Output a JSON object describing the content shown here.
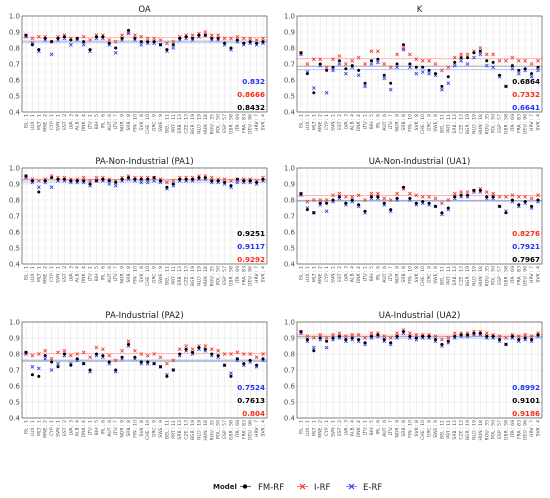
{
  "colors": {
    "FM-RF": "#000000",
    "I-RF": "#ff2a1a",
    "E-RF": "#2233ff",
    "hline_FM": "#9a9a9a",
    "hline_I": "#ffaaaa",
    "hline_E": "#9fb2ff"
  },
  "legend": {
    "title": "Model",
    "entries": [
      {
        "name": "FM-RF",
        "marker": "dot",
        "color": "#000000"
      },
      {
        "name": "I-RF",
        "marker": "cross",
        "color": "#ff2a1a"
      },
      {
        "name": "E-RF",
        "marker": "cross",
        "color": "#2233ff"
      }
    ]
  },
  "chart_data": [
    {
      "type": "scatter",
      "title": "OA",
      "ylim": [
        0.4,
        1.0
      ],
      "yticks": [
        "0.4",
        "0.5",
        "0.6",
        "0.7",
        "0.8",
        "0.9",
        "1.0"
      ],
      "stats": [
        {
          "text": "0.832",
          "color": "#2233ff"
        },
        {
          "text": "0.8666",
          "color": "#ff2a1a"
        },
        {
          "text": "0.8432",
          "color": "#000000"
        }
      ],
      "series": [
        {
          "name": "FM-RF",
          "values": [
            0.88,
            0.82,
            0.79,
            0.86,
            0.84,
            0.86,
            0.87,
            0.85,
            0.86,
            0.84,
            0.79,
            0.87,
            0.87,
            0.83,
            0.8,
            0.86,
            0.91,
            0.86,
            0.84,
            0.84,
            0.84,
            0.82,
            0.79,
            0.82,
            0.86,
            0.87,
            0.86,
            0.88,
            0.88,
            0.86,
            0.86,
            0.83,
            0.8,
            0.85,
            0.83,
            0.84,
            0.83,
            0.84
          ]
        },
        {
          "name": "I-RF",
          "values": [
            0.88,
            0.86,
            0.87,
            0.87,
            0.84,
            0.87,
            0.88,
            0.86,
            0.86,
            0.87,
            0.85,
            0.88,
            0.88,
            0.85,
            0.84,
            0.88,
            0.9,
            0.88,
            0.87,
            0.86,
            0.86,
            0.85,
            0.83,
            0.84,
            0.87,
            0.88,
            0.88,
            0.89,
            0.9,
            0.88,
            0.88,
            0.86,
            0.86,
            0.87,
            0.86,
            0.86,
            0.85,
            0.86
          ]
        },
        {
          "name": "E-RF",
          "values": [
            0.87,
            0.83,
            0.78,
            0.85,
            0.76,
            0.85,
            0.86,
            0.82,
            0.85,
            0.82,
            0.78,
            0.86,
            0.86,
            0.82,
            0.77,
            0.85,
            0.89,
            0.85,
            0.82,
            0.83,
            0.83,
            0.82,
            0.78,
            0.8,
            0.85,
            0.86,
            0.85,
            0.87,
            0.88,
            0.85,
            0.85,
            0.82,
            0.79,
            0.84,
            0.82,
            0.83,
            0.82,
            0.83
          ]
        }
      ],
      "hlines": [
        0.8432,
        0.8666,
        0.832
      ]
    },
    {
      "type": "scatter",
      "title": "K",
      "ylim": [
        0.4,
        1.0
      ],
      "yticks": [
        "0.4",
        "0.5",
        "0.6",
        "0.7",
        "0.8",
        "0.9",
        "1.0"
      ],
      "stats": [
        {
          "text": "0.6864",
          "color": "#000000"
        },
        {
          "text": "0.7332",
          "color": "#ff2a1a"
        },
        {
          "text": "0.6641",
          "color": "#2233ff"
        }
      ],
      "series": [
        {
          "name": "FM-RF",
          "values": [
            0.77,
            0.64,
            0.52,
            0.7,
            0.66,
            0.68,
            0.72,
            0.67,
            0.69,
            0.66,
            0.58,
            0.72,
            0.73,
            0.63,
            0.58,
            0.7,
            0.82,
            0.7,
            0.68,
            0.68,
            0.66,
            0.64,
            0.56,
            0.62,
            0.71,
            0.74,
            0.74,
            0.77,
            0.78,
            0.72,
            0.71,
            0.63,
            0.56,
            0.69,
            0.66,
            0.67,
            0.64,
            0.68
          ]
        },
        {
          "name": "I-RF",
          "values": [
            0.77,
            0.7,
            0.73,
            0.73,
            0.68,
            0.73,
            0.75,
            0.7,
            0.72,
            0.74,
            0.7,
            0.78,
            0.78,
            0.7,
            0.68,
            0.76,
            0.8,
            0.76,
            0.73,
            0.72,
            0.72,
            0.7,
            0.66,
            0.68,
            0.74,
            0.76,
            0.76,
            0.78,
            0.8,
            0.76,
            0.76,
            0.72,
            0.72,
            0.74,
            0.72,
            0.72,
            0.7,
            0.72
          ]
        },
        {
          "name": "E-RF",
          "values": [
            0.76,
            0.65,
            0.55,
            0.69,
            0.52,
            0.66,
            0.7,
            0.64,
            0.68,
            0.63,
            0.56,
            0.7,
            0.71,
            0.61,
            0.54,
            0.68,
            0.79,
            0.68,
            0.64,
            0.65,
            0.64,
            0.63,
            0.54,
            0.58,
            0.69,
            0.72,
            0.7,
            0.74,
            0.76,
            0.69,
            0.68,
            0.62,
            0.56,
            0.67,
            0.64,
            0.66,
            0.62,
            0.66
          ]
        }
      ],
      "hlines": [
        0.6864,
        0.7332,
        0.6641
      ]
    },
    {
      "type": "scatter",
      "title": "PA-Non-Industrial (PA1)",
      "ylim": [
        0.4,
        1.0
      ],
      "yticks": [
        "0.4",
        "0.5",
        "0.6",
        "0.7",
        "0.8",
        "0.9",
        "1.0"
      ],
      "stats": [
        {
          "text": "0.9251",
          "color": "#000000"
        },
        {
          "text": "0.9117",
          "color": "#2233ff"
        },
        {
          "text": "0.9292",
          "color": "#ff2a1a"
        }
      ],
      "series": [
        {
          "name": "FM-RF",
          "values": [
            0.95,
            0.92,
            0.85,
            0.92,
            0.94,
            0.93,
            0.93,
            0.92,
            0.92,
            0.92,
            0.9,
            0.92,
            0.93,
            0.92,
            0.91,
            0.93,
            0.94,
            0.93,
            0.93,
            0.93,
            0.94,
            0.92,
            0.88,
            0.9,
            0.93,
            0.93,
            0.93,
            0.94,
            0.94,
            0.92,
            0.92,
            0.91,
            0.89,
            0.93,
            0.92,
            0.92,
            0.91,
            0.93
          ]
        },
        {
          "name": "I-RF",
          "values": [
            0.95,
            0.93,
            0.92,
            0.93,
            0.95,
            0.94,
            0.94,
            0.93,
            0.93,
            0.94,
            0.92,
            0.94,
            0.94,
            0.93,
            0.92,
            0.94,
            0.95,
            0.94,
            0.94,
            0.94,
            0.94,
            0.93,
            0.91,
            0.92,
            0.94,
            0.94,
            0.94,
            0.95,
            0.95,
            0.94,
            0.93,
            0.93,
            0.92,
            0.93,
            0.93,
            0.93,
            0.92,
            0.94
          ]
        },
        {
          "name": "E-RF",
          "values": [
            0.94,
            0.91,
            0.88,
            0.91,
            0.88,
            0.92,
            0.92,
            0.91,
            0.91,
            0.91,
            0.89,
            0.92,
            0.92,
            0.9,
            0.89,
            0.92,
            0.93,
            0.92,
            0.91,
            0.91,
            0.92,
            0.91,
            0.87,
            0.89,
            0.92,
            0.92,
            0.92,
            0.93,
            0.93,
            0.91,
            0.91,
            0.9,
            0.88,
            0.91,
            0.91,
            0.91,
            0.9,
            0.92
          ]
        }
      ],
      "hlines": [
        0.9251,
        0.9292,
        0.9117
      ]
    },
    {
      "type": "scatter",
      "title": "UA-Non-Industrial (UA1)",
      "ylim": [
        0.4,
        1.0
      ],
      "yticks": [
        "0.4",
        "0.5",
        "0.6",
        "0.7",
        "0.8",
        "0.9",
        "1.0"
      ],
      "stats": [
        {
          "text": "0.8276",
          "color": "#ff2a1a"
        },
        {
          "text": "0.7921",
          "color": "#2233ff"
        },
        {
          "text": "0.7967",
          "color": "#000000"
        }
      ],
      "series": [
        {
          "name": "FM-RF",
          "values": [
            0.84,
            0.74,
            0.72,
            0.78,
            0.78,
            0.8,
            0.82,
            0.78,
            0.8,
            0.77,
            0.73,
            0.82,
            0.82,
            0.78,
            0.74,
            0.81,
            0.88,
            0.81,
            0.78,
            0.79,
            0.78,
            0.76,
            0.72,
            0.75,
            0.82,
            0.83,
            0.83,
            0.86,
            0.86,
            0.82,
            0.82,
            0.76,
            0.72,
            0.8,
            0.77,
            0.79,
            0.76,
            0.8
          ]
        },
        {
          "name": "I-RF",
          "values": [
            0.84,
            0.79,
            0.8,
            0.8,
            0.8,
            0.83,
            0.84,
            0.82,
            0.82,
            0.83,
            0.8,
            0.84,
            0.84,
            0.81,
            0.8,
            0.84,
            0.87,
            0.84,
            0.83,
            0.82,
            0.82,
            0.81,
            0.78,
            0.8,
            0.84,
            0.85,
            0.85,
            0.86,
            0.87,
            0.85,
            0.84,
            0.82,
            0.82,
            0.83,
            0.82,
            0.82,
            0.81,
            0.83
          ]
        },
        {
          "name": "E-RF",
          "values": [
            0.83,
            0.75,
            0.72,
            0.77,
            0.73,
            0.79,
            0.81,
            0.77,
            0.79,
            0.76,
            0.72,
            0.81,
            0.81,
            0.77,
            0.73,
            0.8,
            0.87,
            0.8,
            0.77,
            0.78,
            0.77,
            0.76,
            0.71,
            0.74,
            0.81,
            0.82,
            0.82,
            0.85,
            0.85,
            0.81,
            0.81,
            0.76,
            0.73,
            0.79,
            0.76,
            0.78,
            0.75,
            0.79
          ]
        }
      ],
      "hlines": [
        0.7967,
        0.8276,
        0.7921
      ]
    },
    {
      "type": "scatter",
      "title": "PA-Industrial (PA2)",
      "ylim": [
        0.4,
        1.0
      ],
      "yticks": [
        "0.4",
        "0.5",
        "0.6",
        "0.7",
        "0.8",
        "0.9",
        "1.0"
      ],
      "stats": [
        {
          "text": "0.7524",
          "color": "#2233ff"
        },
        {
          "text": "0.7613",
          "color": "#000000"
        },
        {
          "text": "0.804",
          "color": "#ff2a1a"
        }
      ],
      "series": [
        {
          "name": "FM-RF",
          "values": [
            0.81,
            0.67,
            0.66,
            0.79,
            0.75,
            0.72,
            0.8,
            0.73,
            0.77,
            0.74,
            0.7,
            0.8,
            0.79,
            0.75,
            0.7,
            0.78,
            0.86,
            0.78,
            0.75,
            0.75,
            0.74,
            0.72,
            0.66,
            0.7,
            0.8,
            0.83,
            0.81,
            0.84,
            0.83,
            0.8,
            0.79,
            0.73,
            0.66,
            0.77,
            0.74,
            0.76,
            0.73,
            0.77
          ]
        },
        {
          "name": "I-RF",
          "values": [
            0.81,
            0.79,
            0.8,
            0.82,
            0.77,
            0.81,
            0.82,
            0.79,
            0.8,
            0.81,
            0.78,
            0.84,
            0.83,
            0.79,
            0.76,
            0.82,
            0.88,
            0.82,
            0.8,
            0.79,
            0.8,
            0.78,
            0.74,
            0.76,
            0.83,
            0.85,
            0.83,
            0.85,
            0.85,
            0.83,
            0.82,
            0.8,
            0.8,
            0.81,
            0.8,
            0.8,
            0.78,
            0.8
          ]
        },
        {
          "name": "E-RF",
          "values": [
            0.8,
            0.72,
            0.71,
            0.77,
            0.7,
            0.74,
            0.79,
            0.74,
            0.76,
            0.74,
            0.69,
            0.79,
            0.78,
            0.74,
            0.69,
            0.77,
            0.85,
            0.77,
            0.74,
            0.74,
            0.74,
            0.72,
            0.67,
            0.7,
            0.79,
            0.82,
            0.8,
            0.83,
            0.82,
            0.79,
            0.78,
            0.73,
            0.68,
            0.76,
            0.73,
            0.75,
            0.72,
            0.76
          ]
        }
      ],
      "hlines": [
        0.7613,
        0.804,
        0.7524
      ]
    },
    {
      "type": "scatter",
      "title": "UA-Industrial (UA2)",
      "ylim": [
        0.4,
        1.0
      ],
      "yticks": [
        "0.4",
        "0.5",
        "0.6",
        "0.7",
        "0.8",
        "0.9",
        "1.0"
      ],
      "stats": [
        {
          "text": "0.8992",
          "color": "#2233ff"
        },
        {
          "text": "0.9101",
          "color": "#000000"
        },
        {
          "text": "0.9186",
          "color": "#ff2a1a"
        }
      ],
      "series": [
        {
          "name": "FM-RF",
          "values": [
            0.94,
            0.89,
            0.82,
            0.9,
            0.88,
            0.9,
            0.91,
            0.89,
            0.9,
            0.89,
            0.87,
            0.91,
            0.92,
            0.89,
            0.87,
            0.91,
            0.94,
            0.91,
            0.9,
            0.91,
            0.91,
            0.89,
            0.86,
            0.88,
            0.91,
            0.92,
            0.92,
            0.93,
            0.93,
            0.91,
            0.91,
            0.89,
            0.86,
            0.91,
            0.89,
            0.9,
            0.89,
            0.92
          ]
        },
        {
          "name": "I-RF",
          "values": [
            0.94,
            0.91,
            0.9,
            0.92,
            0.9,
            0.92,
            0.93,
            0.91,
            0.92,
            0.92,
            0.9,
            0.93,
            0.93,
            0.91,
            0.9,
            0.93,
            0.95,
            0.93,
            0.92,
            0.92,
            0.92,
            0.91,
            0.89,
            0.9,
            0.93,
            0.93,
            0.93,
            0.94,
            0.94,
            0.93,
            0.92,
            0.91,
            0.9,
            0.92,
            0.91,
            0.92,
            0.91,
            0.93
          ]
        },
        {
          "name": "E-RF",
          "values": [
            0.93,
            0.88,
            0.84,
            0.89,
            0.84,
            0.89,
            0.9,
            0.88,
            0.89,
            0.88,
            0.86,
            0.9,
            0.91,
            0.88,
            0.86,
            0.9,
            0.93,
            0.9,
            0.89,
            0.9,
            0.9,
            0.88,
            0.85,
            0.87,
            0.9,
            0.91,
            0.91,
            0.92,
            0.92,
            0.9,
            0.9,
            0.88,
            0.86,
            0.9,
            0.88,
            0.89,
            0.88,
            0.91
          ]
        }
      ],
      "hlines": [
        0.9101,
        0.9186,
        0.8992
      ]
    }
  ],
  "x_categories": [
    "ISL : 1",
    "LUX : 1",
    "MLT : 1",
    "MNE : 2",
    "CYP : 1",
    "SVN : 1",
    "EST : 2",
    "LVA : 3",
    "ALB : 4",
    "DNK : 4",
    "LTU : 1",
    "BIH : 5",
    "IRL : 6",
    "AUT : 6",
    "LTU : 7",
    "NOR : 9",
    "SRB : 8",
    "FIN : 10",
    "SVK : 8",
    "CHE : 10",
    "GRC : 9",
    "SWE : 9",
    "BEL : 11",
    "PRT : 11",
    "SRB : 13",
    "CZE : 13",
    "BGR : 19",
    "NLD : 19",
    "HUN : 18",
    "ROU : 35",
    "POL : 50",
    "ESP : 57",
    "GBR : 58",
    "ITA : 69",
    "FRA : 83",
    "DEU : 96",
    "HRV : 7",
    "SVK : 4"
  ]
}
